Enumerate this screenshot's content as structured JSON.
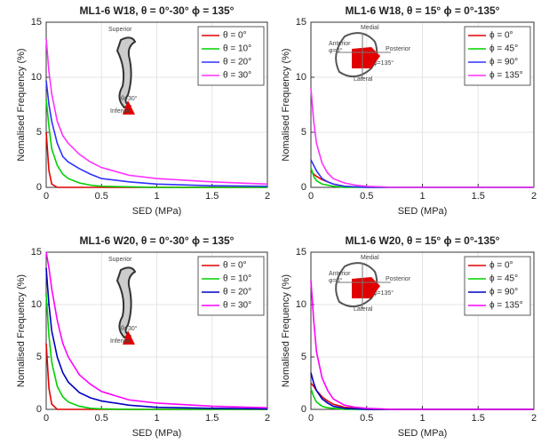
{
  "chart_data": [
    {
      "type": "line",
      "title": "ML1-6 W18, θ = 0°-30° ϕ = 135°",
      "xlabel": "SED (MPa)",
      "ylabel": "Nomalised Frequency (%)",
      "x": [
        0,
        0.025,
        0.05,
        0.1,
        0.15,
        0.2,
        0.3,
        0.4,
        0.5,
        0.75,
        1,
        1.5,
        2
      ],
      "xlim": [
        0,
        2
      ],
      "ylim": [
        0,
        15
      ],
      "xticks": [
        0,
        0.5,
        1,
        1.5,
        2
      ],
      "yticks": [
        0,
        5,
        10,
        15
      ],
      "grid": true,
      "legend": "upper right",
      "annotations": [
        "Superior",
        "Inferior",
        "θ=30°"
      ],
      "series": [
        {
          "name": "θ = 0°",
          "color": "#e00000",
          "values": [
            5,
            1.5,
            0.3,
            0,
            0,
            0,
            0,
            0,
            0,
            0,
            0,
            0,
            0
          ]
        },
        {
          "name": "θ = 10°",
          "color": "#00d000",
          "values": [
            8,
            5.5,
            3.5,
            2,
            1.2,
            0.8,
            0.4,
            0.2,
            0.1,
            0.05,
            0,
            0,
            0
          ]
        },
        {
          "name": "θ = 20°",
          "color": "#3030ff",
          "values": [
            9.7,
            7.5,
            6,
            4,
            2.8,
            2.3,
            1.7,
            1.2,
            0.8,
            0.5,
            0.3,
            0.15,
            0.1
          ]
        },
        {
          "name": "θ = 30°",
          "color": "#ff30ff",
          "values": [
            13.5,
            10.5,
            8.5,
            6,
            4.7,
            4,
            3,
            2.3,
            1.8,
            1.1,
            0.8,
            0.5,
            0.3
          ]
        }
      ]
    },
    {
      "type": "line",
      "title": "ML1-6 W18, θ = 15° ϕ = 0°-135°",
      "xlabel": "SED (MPa)",
      "ylabel": "Nomalised Frequency (%)",
      "x": [
        0,
        0.025,
        0.05,
        0.1,
        0.15,
        0.2,
        0.3,
        0.4,
        0.5,
        0.75,
        1,
        1.5,
        2
      ],
      "xlim": [
        0,
        2
      ],
      "ylim": [
        0,
        15
      ],
      "xticks": [
        0,
        0.5,
        1,
        1.5,
        2
      ],
      "yticks": [
        0,
        5,
        10,
        15
      ],
      "grid": true,
      "legend": "upper right",
      "annotations": [
        "Medial",
        "Anterior",
        "φ=0°",
        "Posterior",
        "Lateral",
        "φ=135°"
      ],
      "series": [
        {
          "name": "ϕ = 0°",
          "color": "#e00000",
          "values": [
            1.5,
            1.2,
            1,
            0.7,
            0.5,
            0.3,
            0.1,
            0.05,
            0,
            0,
            0,
            0,
            0
          ]
        },
        {
          "name": "ϕ = 45°",
          "color": "#00d000",
          "values": [
            1.8,
            1,
            0.6,
            0.3,
            0.2,
            0.1,
            0,
            0,
            0,
            0,
            0,
            0,
            0
          ]
        },
        {
          "name": "ϕ = 90°",
          "color": "#3030ff",
          "values": [
            2.5,
            2,
            1.5,
            0.8,
            0.5,
            0.3,
            0.1,
            0.05,
            0,
            0,
            0,
            0,
            0
          ]
        },
        {
          "name": "ϕ = 135°",
          "color": "#ff30ff",
          "values": [
            9,
            6,
            4,
            2.2,
            1.3,
            0.8,
            0.4,
            0.2,
            0.1,
            0,
            0,
            0,
            0
          ]
        }
      ]
    },
    {
      "type": "line",
      "title": "ML1-6 W20, θ = 0°-30° ϕ = 135°",
      "xlabel": "SED (MPa)",
      "ylabel": "Nomalised Frequency (%)",
      "x": [
        0,
        0.025,
        0.05,
        0.1,
        0.15,
        0.2,
        0.3,
        0.4,
        0.5,
        0.75,
        1,
        1.5,
        2
      ],
      "xlim": [
        0,
        2
      ],
      "ylim": [
        0,
        15
      ],
      "xticks": [
        0,
        0.5,
        1,
        1.5,
        2
      ],
      "yticks": [
        0,
        5,
        10,
        15
      ],
      "grid": true,
      "legend": "upper right",
      "annotations": [
        "Superior",
        "Inferior",
        "θ=30°"
      ],
      "series": [
        {
          "name": "θ = 0°",
          "color": "#e00000",
          "values": [
            6.3,
            2,
            0.5,
            0,
            0,
            0,
            0,
            0,
            0,
            0,
            0,
            0,
            0
          ]
        },
        {
          "name": "θ = 10°",
          "color": "#00d000",
          "values": [
            11,
            7,
            4.5,
            2.2,
            1.2,
            0.7,
            0.3,
            0.1,
            0.05,
            0,
            0,
            0,
            0
          ]
        },
        {
          "name": "θ = 20°",
          "color": "#0000c0",
          "values": [
            13.5,
            10,
            7.5,
            5,
            3.5,
            2.6,
            1.6,
            1.1,
            0.8,
            0.4,
            0.2,
            0.1,
            0.05
          ]
        },
        {
          "name": "θ = 30°",
          "color": "#ff00ff",
          "values": [
            15,
            13.5,
            11.5,
            8.5,
            6.3,
            5,
            3.3,
            2.4,
            1.7,
            0.9,
            0.6,
            0.3,
            0.15
          ]
        }
      ]
    },
    {
      "type": "line",
      "title": "ML1-6 W20, θ = 15° ϕ = 0°-135°",
      "xlabel": "SED (MPa)",
      "ylabel": "Nomalised Frequency (%)",
      "x": [
        0,
        0.025,
        0.05,
        0.1,
        0.15,
        0.2,
        0.3,
        0.4,
        0.5,
        0.75,
        1,
        1.5,
        2
      ],
      "xlim": [
        0,
        2
      ],
      "ylim": [
        0,
        15
      ],
      "xticks": [
        0,
        0.5,
        1,
        1.5,
        2
      ],
      "yticks": [
        0,
        5,
        10,
        15
      ],
      "grid": true,
      "legend": "upper right",
      "annotations": [
        "Medial",
        "Anterior",
        "φ=0°",
        "Posterior",
        "Lateral",
        "φ=135°"
      ],
      "series": [
        {
          "name": "ϕ = 0°",
          "color": "#e00000",
          "values": [
            2.5,
            2.2,
            1.8,
            1.2,
            0.8,
            0.5,
            0.2,
            0.1,
            0,
            0,
            0,
            0,
            0
          ]
        },
        {
          "name": "ϕ = 45°",
          "color": "#00d000",
          "values": [
            2,
            1.2,
            0.7,
            0.3,
            0.15,
            0.1,
            0,
            0,
            0,
            0,
            0,
            0,
            0
          ]
        },
        {
          "name": "ϕ = 90°",
          "color": "#0000c0",
          "values": [
            3.5,
            2.5,
            1.8,
            1,
            0.6,
            0.3,
            0.1,
            0.05,
            0,
            0,
            0,
            0,
            0
          ]
        },
        {
          "name": "ϕ = 135°",
          "color": "#ff00ff",
          "values": [
            12.3,
            8.5,
            5.5,
            3,
            1.8,
            1,
            0.4,
            0.2,
            0.1,
            0,
            0,
            0,
            0
          ]
        }
      ]
    }
  ]
}
